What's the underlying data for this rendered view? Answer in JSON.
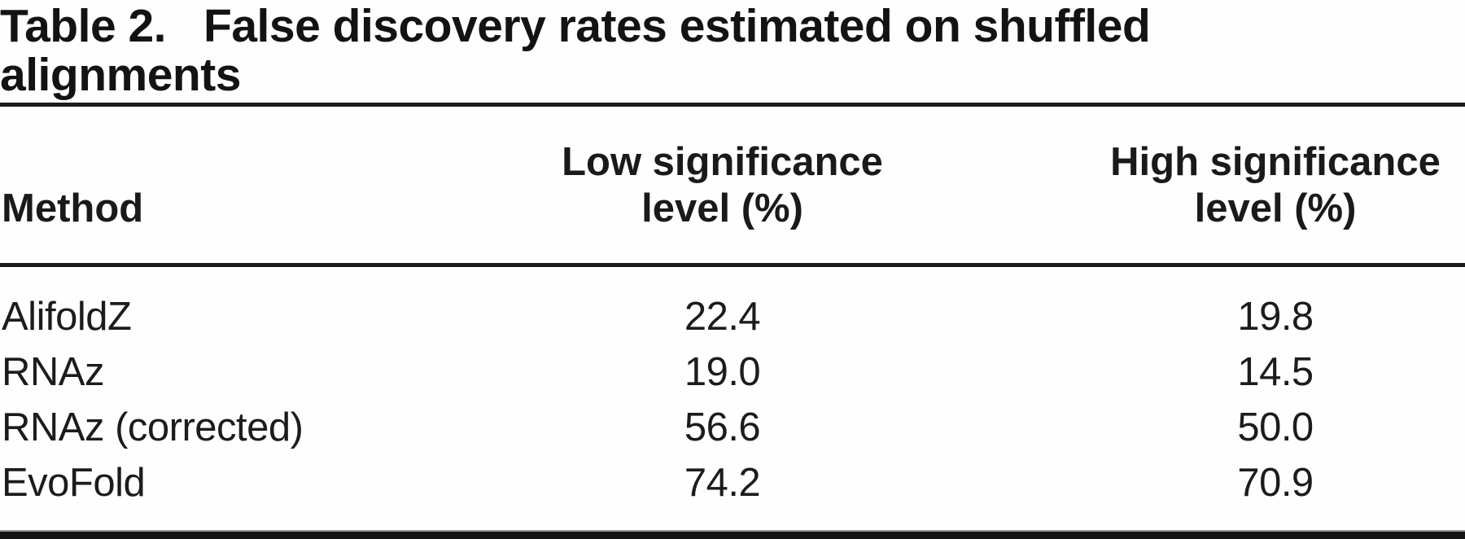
{
  "table": {
    "title_label": "Table 2.",
    "title_line1": "False discovery rates estimated on shuffled",
    "title_line2": "alignments",
    "columns": {
      "method": "Method",
      "low_line1": "Low significance",
      "low_line2": "level (%)",
      "high_line1": "High significance",
      "high_line2": "level (%)"
    },
    "rows": [
      {
        "method": "AlifoldZ",
        "low": "22.4",
        "high": "19.8"
      },
      {
        "method": "RNAz",
        "low": "19.0",
        "high": "14.5"
      },
      {
        "method": "RNAz (corrected)",
        "low": "56.6",
        "high": "50.0"
      },
      {
        "method": "EvoFold",
        "low": "74.2",
        "high": "70.9"
      }
    ],
    "colors": {
      "text": "#161616",
      "background": "#fefefe",
      "rule": "#1b1b1b"
    }
  }
}
